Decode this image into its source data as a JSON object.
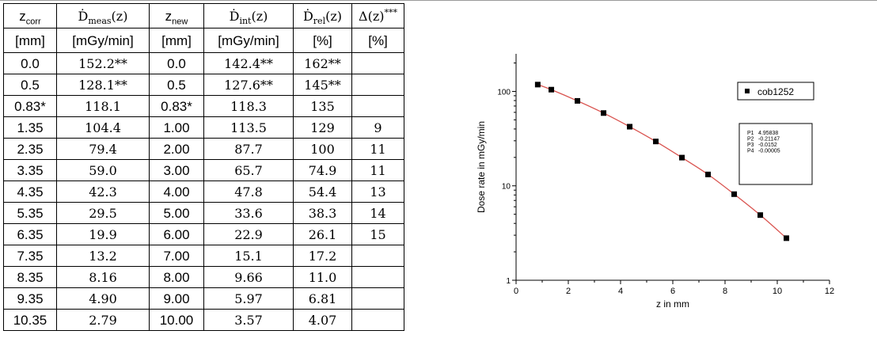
{
  "table": {
    "headers": [
      [
        "z_corr",
        "[mm]"
      ],
      [
        "Ḋ_meas(z)",
        "[mGy/min]"
      ],
      [
        "z_new",
        "[mm]"
      ],
      [
        "Ḋ_int(z)",
        "[mGy/min]"
      ],
      [
        "Ḋ_rel(z)",
        "[%]"
      ],
      [
        "Δ(z)***",
        "[%]"
      ]
    ],
    "rows": [
      [
        "0.0",
        "152.2**",
        "0.0",
        "142.4**",
        "162**",
        ""
      ],
      [
        "0.5",
        "128.1**",
        "0.5",
        "127.6**",
        "145**",
        ""
      ],
      [
        "0.83*",
        "118.1",
        "0.83*",
        "118.3",
        "135",
        ""
      ],
      [
        "1.35",
        "104.4",
        "1.00",
        "113.5",
        "129",
        "9"
      ],
      [
        "2.35",
        "79.4",
        "2.00",
        "87.7",
        "100",
        "11"
      ],
      [
        "3.35",
        "59.0",
        "3.00",
        "65.7",
        "74.9",
        "11"
      ],
      [
        "4.35",
        "42.3",
        "4.00",
        "47.8",
        "54.4",
        "13"
      ],
      [
        "5.35",
        "29.5",
        "5.00",
        "33.6",
        "38.3",
        "14"
      ],
      [
        "6.35",
        "19.9",
        "6.00",
        "22.9",
        "26.1",
        "15"
      ],
      [
        "7.35",
        "13.2",
        "7.00",
        "15.1",
        "17.2",
        ""
      ],
      [
        "8.35",
        "8.16",
        "8.00",
        "9.66",
        "11.0",
        ""
      ],
      [
        "9.35",
        "4.90",
        "9.00",
        "5.97",
        "6.81",
        ""
      ],
      [
        "10.35",
        "2.79",
        "10.00",
        "3.57",
        "4.07",
        ""
      ]
    ]
  },
  "chart_data": {
    "type": "scatter",
    "xlabel": "z in mm",
    "ylabel": "Dose rate in mGy/min",
    "xlim": [
      0,
      12
    ],
    "ylim": [
      1,
      250
    ],
    "yscale": "log",
    "xticks": [
      "0",
      "2",
      "4",
      "6",
      "8",
      "10",
      "12"
    ],
    "yticks": [
      {
        "value": 1,
        "label": "1"
      },
      {
        "value": 10,
        "label": "10"
      },
      {
        "value": 100,
        "label": "100"
      }
    ],
    "grid": false,
    "legend_position": "top-right",
    "series": [
      {
        "name": "cob1252",
        "x": [
          0.83,
          1.35,
          2.35,
          3.35,
          4.35,
          5.35,
          6.35,
          7.35,
          8.35,
          9.35,
          10.35
        ],
        "y": [
          118.1,
          104.4,
          79.4,
          59.0,
          42.3,
          29.5,
          19.9,
          13.2,
          8.16,
          4.9,
          2.79
        ],
        "marker_color": "#000000"
      }
    ],
    "fit": {
      "line_color": "#d9534f",
      "params": [
        {
          "name": "P1",
          "value": "4.95838"
        },
        {
          "name": "P2",
          "value": "-0.21147"
        },
        {
          "name": "P3",
          "value": "-0.0152"
        },
        {
          "name": "P4",
          "value": "-0.00005"
        }
      ]
    }
  }
}
